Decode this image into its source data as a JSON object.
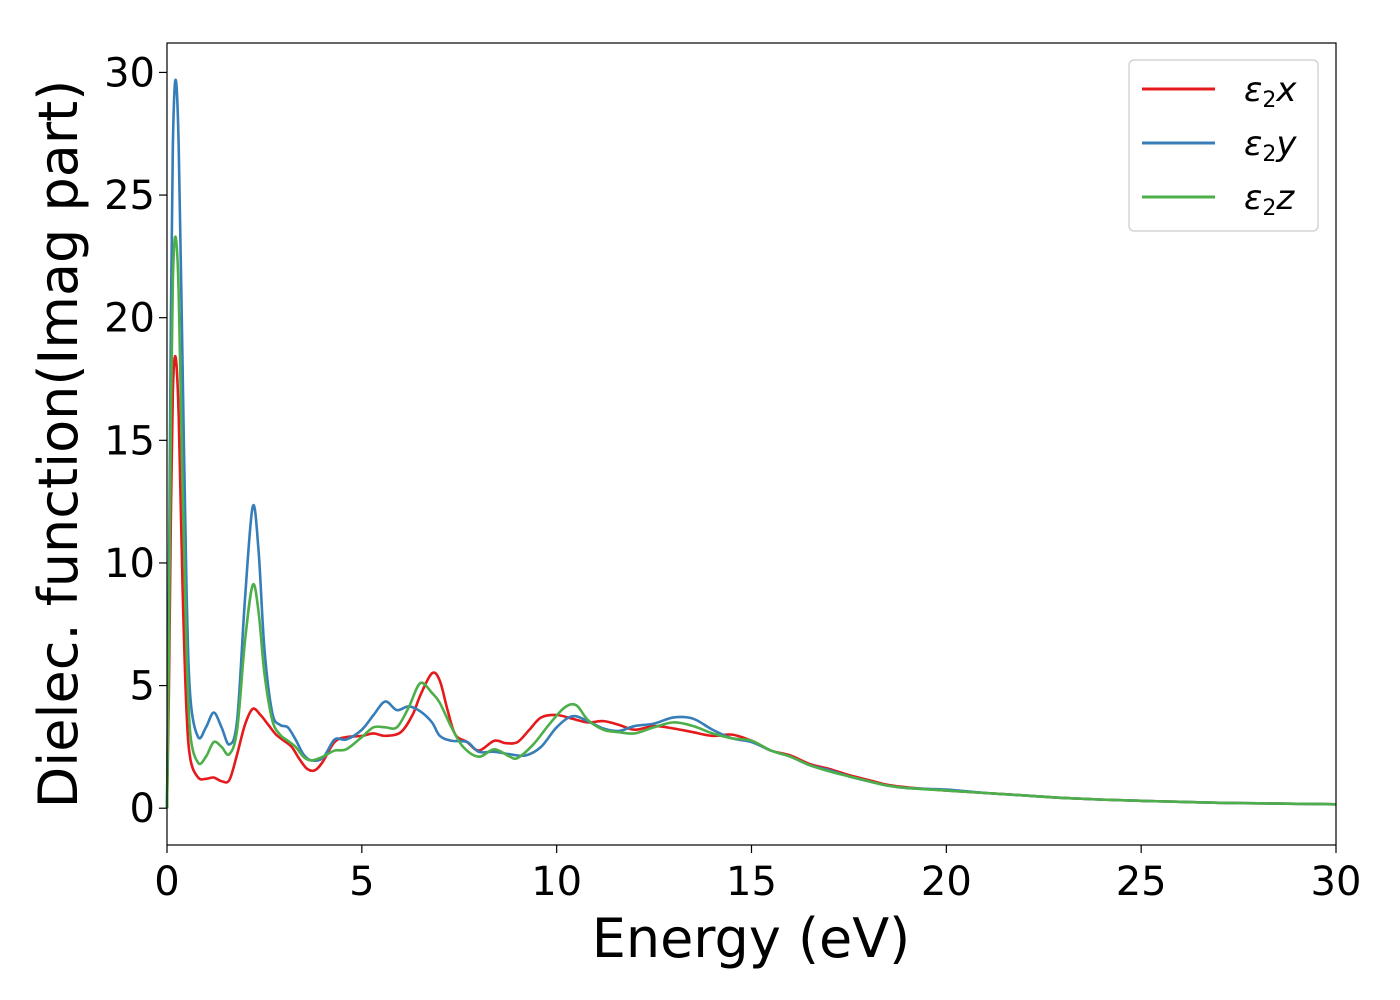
{
  "chart_data": {
    "type": "line",
    "title": "",
    "xlabel": "Energy (eV)",
    "ylabel": "Dielec. function(Imag part)",
    "xlim": [
      0,
      30
    ],
    "ylim": [
      -1.5,
      31.2
    ],
    "xticks": [
      0,
      5,
      10,
      15,
      20,
      25,
      30
    ],
    "yticks": [
      0,
      5,
      10,
      15,
      20,
      25,
      30
    ],
    "grid": false,
    "legend_position": "top-right",
    "series": [
      {
        "name": "ε2x",
        "legend_base": "ε",
        "legend_sub": "2",
        "legend_suffix": "x",
        "color": "#e41a1c",
        "points": [
          [
            0,
            0
          ],
          [
            0.05,
            5
          ],
          [
            0.1,
            12
          ],
          [
            0.15,
            17
          ],
          [
            0.22,
            18.4
          ],
          [
            0.3,
            16
          ],
          [
            0.4,
            9
          ],
          [
            0.5,
            4
          ],
          [
            0.6,
            2
          ],
          [
            0.8,
            1.25
          ],
          [
            1.0,
            1.2
          ],
          [
            1.2,
            1.25
          ],
          [
            1.4,
            1.1
          ],
          [
            1.6,
            1.15
          ],
          [
            1.8,
            2.2
          ],
          [
            2.0,
            3.4
          ],
          [
            2.2,
            4.05
          ],
          [
            2.4,
            3.8
          ],
          [
            2.6,
            3.4
          ],
          [
            2.8,
            3.0
          ],
          [
            3.0,
            2.75
          ],
          [
            3.2,
            2.5
          ],
          [
            3.4,
            2.0
          ],
          [
            3.6,
            1.6
          ],
          [
            3.8,
            1.55
          ],
          [
            4.0,
            1.9
          ],
          [
            4.3,
            2.7
          ],
          [
            4.6,
            2.9
          ],
          [
            5.0,
            2.95
          ],
          [
            5.3,
            3.05
          ],
          [
            5.6,
            2.95
          ],
          [
            6.0,
            3.1
          ],
          [
            6.3,
            3.8
          ],
          [
            6.5,
            4.6
          ],
          [
            6.8,
            5.5
          ],
          [
            7.0,
            5.2
          ],
          [
            7.2,
            4.0
          ],
          [
            7.4,
            3.0
          ],
          [
            7.7,
            2.7
          ],
          [
            8.0,
            2.35
          ],
          [
            8.4,
            2.75
          ],
          [
            8.7,
            2.65
          ],
          [
            9.0,
            2.7
          ],
          [
            9.3,
            3.2
          ],
          [
            9.6,
            3.7
          ],
          [
            10.0,
            3.8
          ],
          [
            10.4,
            3.65
          ],
          [
            10.8,
            3.5
          ],
          [
            11.2,
            3.55
          ],
          [
            11.6,
            3.4
          ],
          [
            12.0,
            3.2
          ],
          [
            12.5,
            3.35
          ],
          [
            13.0,
            3.25
          ],
          [
            13.5,
            3.1
          ],
          [
            14.0,
            2.95
          ],
          [
            14.5,
            3.0
          ],
          [
            15.0,
            2.75
          ],
          [
            15.5,
            2.35
          ],
          [
            16.0,
            2.15
          ],
          [
            16.5,
            1.8
          ],
          [
            17.0,
            1.6
          ],
          [
            17.5,
            1.35
          ],
          [
            18.0,
            1.15
          ],
          [
            18.5,
            0.95
          ],
          [
            19.0,
            0.85
          ],
          [
            20.0,
            0.72
          ],
          [
            21.0,
            0.62
          ],
          [
            22.0,
            0.52
          ],
          [
            23.0,
            0.42
          ],
          [
            24.0,
            0.35
          ],
          [
            25.0,
            0.3
          ],
          [
            26.0,
            0.26
          ],
          [
            27.0,
            0.22
          ],
          [
            28.0,
            0.2
          ],
          [
            29.0,
            0.18
          ],
          [
            30.0,
            0.16
          ]
        ]
      },
      {
        "name": "ε2y",
        "legend_base": "ε",
        "legend_sub": "2",
        "legend_suffix": "y",
        "color": "#377eb8",
        "points": [
          [
            0,
            0
          ],
          [
            0.05,
            9
          ],
          [
            0.1,
            20
          ],
          [
            0.15,
            27
          ],
          [
            0.22,
            29.7
          ],
          [
            0.3,
            27
          ],
          [
            0.4,
            18
          ],
          [
            0.5,
            9
          ],
          [
            0.6,
            4.5
          ],
          [
            0.8,
            2.9
          ],
          [
            1.0,
            3.3
          ],
          [
            1.2,
            3.9
          ],
          [
            1.4,
            3.3
          ],
          [
            1.6,
            2.6
          ],
          [
            1.8,
            3.6
          ],
          [
            2.0,
            8.5
          ],
          [
            2.2,
            12.3
          ],
          [
            2.35,
            10.5
          ],
          [
            2.5,
            6.5
          ],
          [
            2.7,
            3.9
          ],
          [
            2.9,
            3.4
          ],
          [
            3.1,
            3.3
          ],
          [
            3.3,
            2.8
          ],
          [
            3.5,
            2.2
          ],
          [
            3.7,
            1.95
          ],
          [
            4.0,
            2.05
          ],
          [
            4.3,
            2.8
          ],
          [
            4.6,
            2.8
          ],
          [
            5.0,
            3.2
          ],
          [
            5.3,
            3.8
          ],
          [
            5.6,
            4.35
          ],
          [
            5.9,
            4.0
          ],
          [
            6.2,
            4.15
          ],
          [
            6.5,
            3.95
          ],
          [
            6.8,
            3.5
          ],
          [
            7.0,
            2.95
          ],
          [
            7.3,
            2.75
          ],
          [
            7.7,
            2.7
          ],
          [
            8.0,
            2.3
          ],
          [
            8.4,
            2.3
          ],
          [
            8.8,
            2.2
          ],
          [
            9.2,
            2.15
          ],
          [
            9.6,
            2.5
          ],
          [
            10.0,
            3.3
          ],
          [
            10.4,
            3.75
          ],
          [
            10.8,
            3.55
          ],
          [
            11.2,
            3.25
          ],
          [
            11.6,
            3.15
          ],
          [
            12.0,
            3.35
          ],
          [
            12.5,
            3.45
          ],
          [
            13.0,
            3.7
          ],
          [
            13.5,
            3.65
          ],
          [
            14.0,
            3.2
          ],
          [
            14.5,
            2.85
          ],
          [
            15.0,
            2.7
          ],
          [
            15.5,
            2.35
          ],
          [
            16.0,
            2.1
          ],
          [
            16.5,
            1.75
          ],
          [
            17.0,
            1.55
          ],
          [
            17.5,
            1.3
          ],
          [
            18.0,
            1.1
          ],
          [
            18.5,
            0.92
          ],
          [
            19.0,
            0.82
          ],
          [
            20.0,
            0.76
          ],
          [
            21.0,
            0.62
          ],
          [
            22.0,
            0.52
          ],
          [
            23.0,
            0.42
          ],
          [
            24.0,
            0.35
          ],
          [
            25.0,
            0.3
          ],
          [
            26.0,
            0.26
          ],
          [
            27.0,
            0.22
          ],
          [
            28.0,
            0.2
          ],
          [
            29.0,
            0.18
          ],
          [
            30.0,
            0.16
          ]
        ]
      },
      {
        "name": "ε2z",
        "legend_base": "ε",
        "legend_sub": "2",
        "legend_suffix": "z",
        "color": "#4daf4a",
        "points": [
          [
            0,
            0
          ],
          [
            0.05,
            7
          ],
          [
            0.1,
            16
          ],
          [
            0.15,
            21.5
          ],
          [
            0.22,
            23.3
          ],
          [
            0.3,
            21
          ],
          [
            0.4,
            13
          ],
          [
            0.5,
            6.5
          ],
          [
            0.6,
            3
          ],
          [
            0.8,
            1.85
          ],
          [
            1.0,
            2.1
          ],
          [
            1.2,
            2.7
          ],
          [
            1.4,
            2.5
          ],
          [
            1.6,
            2.2
          ],
          [
            1.8,
            3.2
          ],
          [
            2.0,
            6.8
          ],
          [
            2.2,
            9.1
          ],
          [
            2.35,
            8.0
          ],
          [
            2.5,
            5.5
          ],
          [
            2.7,
            3.6
          ],
          [
            2.9,
            3.0
          ],
          [
            3.1,
            2.75
          ],
          [
            3.3,
            2.5
          ],
          [
            3.5,
            2.1
          ],
          [
            3.7,
            1.95
          ],
          [
            4.0,
            2.1
          ],
          [
            4.3,
            2.35
          ],
          [
            4.6,
            2.4
          ],
          [
            5.0,
            2.9
          ],
          [
            5.3,
            3.3
          ],
          [
            5.6,
            3.3
          ],
          [
            5.9,
            3.3
          ],
          [
            6.2,
            4.1
          ],
          [
            6.5,
            5.1
          ],
          [
            6.8,
            4.7
          ],
          [
            7.0,
            4.3
          ],
          [
            7.3,
            3.3
          ],
          [
            7.6,
            2.5
          ],
          [
            8.0,
            2.1
          ],
          [
            8.4,
            2.4
          ],
          [
            8.8,
            2.1
          ],
          [
            9.0,
            2.05
          ],
          [
            9.4,
            2.6
          ],
          [
            9.8,
            3.4
          ],
          [
            10.2,
            4.1
          ],
          [
            10.5,
            4.2
          ],
          [
            10.8,
            3.6
          ],
          [
            11.2,
            3.2
          ],
          [
            11.6,
            3.1
          ],
          [
            12.0,
            3.05
          ],
          [
            12.5,
            3.3
          ],
          [
            13.0,
            3.5
          ],
          [
            13.5,
            3.35
          ],
          [
            14.0,
            3.05
          ],
          [
            14.5,
            2.85
          ],
          [
            15.0,
            2.75
          ],
          [
            15.5,
            2.35
          ],
          [
            16.0,
            2.1
          ],
          [
            16.5,
            1.75
          ],
          [
            17.0,
            1.5
          ],
          [
            17.5,
            1.3
          ],
          [
            18.0,
            1.1
          ],
          [
            18.5,
            0.92
          ],
          [
            19.0,
            0.82
          ],
          [
            20.0,
            0.72
          ],
          [
            21.0,
            0.62
          ],
          [
            22.0,
            0.52
          ],
          [
            23.0,
            0.42
          ],
          [
            24.0,
            0.35
          ],
          [
            25.0,
            0.3
          ],
          [
            26.0,
            0.26
          ],
          [
            27.0,
            0.22
          ],
          [
            28.0,
            0.2
          ],
          [
            29.0,
            0.18
          ],
          [
            30.0,
            0.16
          ]
        ]
      }
    ]
  }
}
